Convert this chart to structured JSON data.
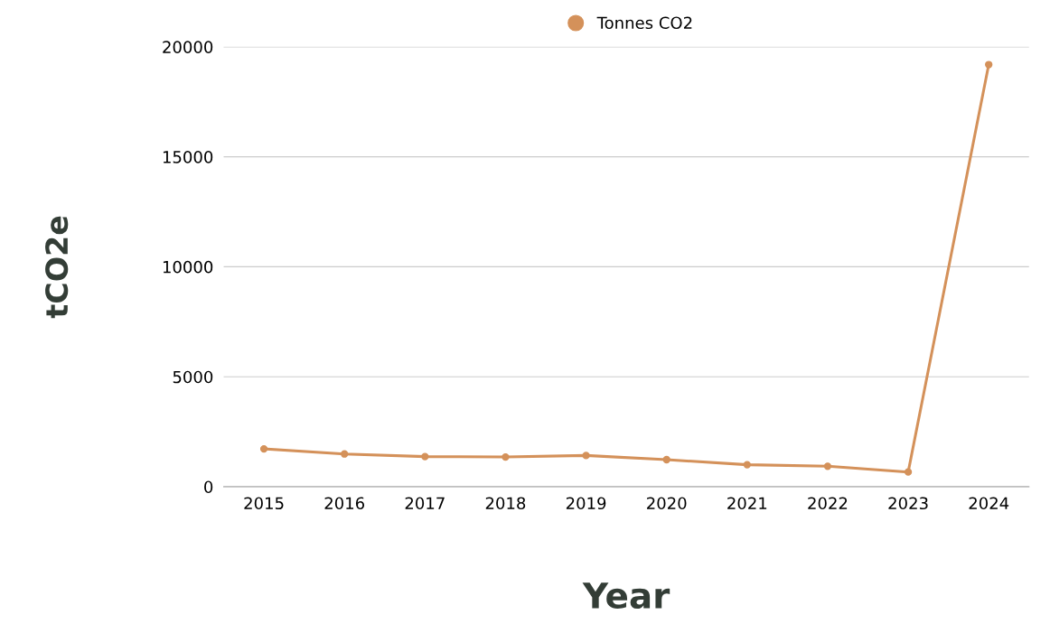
{
  "chart_data": {
    "type": "line",
    "xlabel": "Year",
    "ylabel": "tCO2e",
    "categories": [
      "2015",
      "2016",
      "2017",
      "2018",
      "2019",
      "2020",
      "2021",
      "2022",
      "2023",
      "2024"
    ],
    "series": [
      {
        "name": "Tonnes CO2",
        "color": "#d4915a",
        "values": [
          1720,
          1490,
          1370,
          1350,
          1420,
          1230,
          1000,
          930,
          670,
          19190
        ]
      }
    ],
    "ylim": [
      0,
      20000
    ],
    "yticks": [
      0,
      5000,
      10000,
      15000,
      20000
    ],
    "grid": "y",
    "legend": "top",
    "marker": "circle",
    "line_style": "solid"
  }
}
